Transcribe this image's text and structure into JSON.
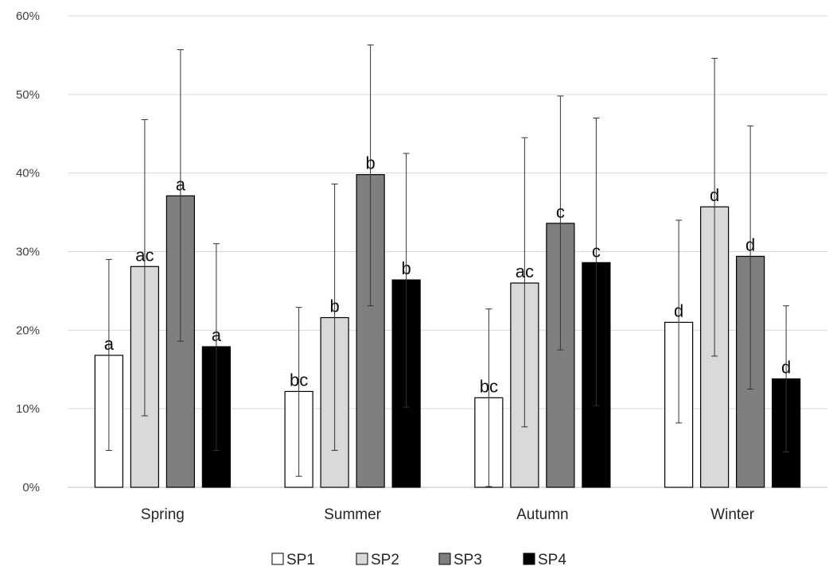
{
  "chart_data": {
    "type": "bar",
    "categories": [
      "Spring",
      "Summer",
      "Autumn",
      "Winter"
    ],
    "series": [
      {
        "name": "SP1",
        "color": "#ffffff",
        "values": [
          16.8,
          12.2,
          11.4,
          21.0
        ],
        "error_low": [
          4.7,
          1.4,
          0.1,
          8.2
        ],
        "error_high": [
          29.0,
          22.9,
          22.7,
          34.0
        ],
        "letters": [
          "a",
          "bc",
          "bc",
          "d"
        ]
      },
      {
        "name": "SP2",
        "color": "#d9d9d9",
        "values": [
          28.1,
          21.6,
          26.0,
          35.7
        ],
        "error_low": [
          9.1,
          4.7,
          7.7,
          16.7
        ],
        "error_high": [
          46.8,
          38.6,
          44.5,
          54.6
        ],
        "letters": [
          "ac",
          "b",
          "ac",
          "d"
        ]
      },
      {
        "name": "SP3",
        "color": "#7f7f7f",
        "values": [
          37.1,
          39.8,
          33.6,
          29.4
        ],
        "error_low": [
          18.6,
          23.1,
          17.5,
          12.5
        ],
        "error_high": [
          55.7,
          56.3,
          49.8,
          46.0
        ],
        "letters": [
          "a",
          "b",
          "c",
          "d"
        ]
      },
      {
        "name": "SP4",
        "color": "#000000",
        "values": [
          17.9,
          26.4,
          28.6,
          13.8
        ],
        "error_low": [
          4.7,
          10.2,
          10.4,
          4.5
        ],
        "error_high": [
          31.0,
          42.5,
          47.0,
          23.1
        ],
        "letters": [
          "a",
          "b",
          "c",
          "d"
        ]
      }
    ],
    "y_ticks": [
      "0%",
      "10%",
      "20%",
      "30%",
      "40%",
      "50%",
      "60%"
    ],
    "ylim": [
      0,
      60
    ],
    "grid": true,
    "legend_position": "bottom"
  }
}
